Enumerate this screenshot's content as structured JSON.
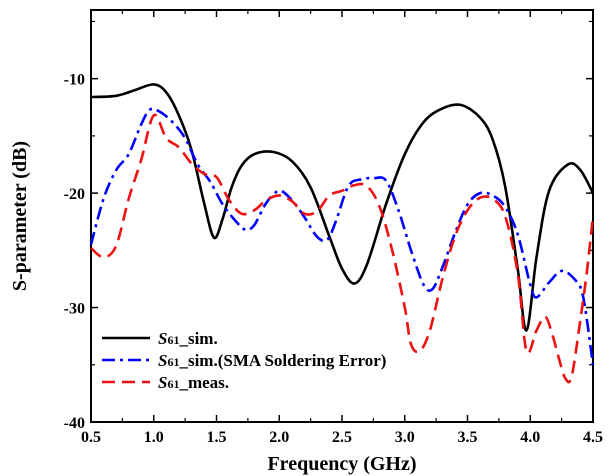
{
  "chart_data": {
    "type": "line",
    "xlabel": "Frequency (GHz)",
    "ylabel": "S-parameter (dB)",
    "xlim": [
      0.5,
      4.5
    ],
    "ylim": [
      -40,
      -4
    ],
    "x_ticks": [
      "0.5",
      "1.0",
      "1.5",
      "2.0",
      "2.5",
      "3.0",
      "3.5",
      "4.0",
      "4.5"
    ],
    "y_ticks": [
      "-40",
      "-30",
      "-20",
      "-10"
    ],
    "grid": false,
    "legend_position": "bottom-left",
    "series": [
      {
        "name_prefix": "S",
        "name_sub": "61",
        "name_suffix": "_sim.",
        "color": "#000000",
        "dash": "solid",
        "x": [
          0.5,
          0.7,
          0.85,
          1.0,
          1.1,
          1.2,
          1.3,
          1.4,
          1.48,
          1.55,
          1.62,
          1.7,
          1.8,
          1.95,
          2.1,
          2.25,
          2.4,
          2.5,
          2.6,
          2.7,
          2.85,
          3.0,
          3.15,
          3.3,
          3.45,
          3.6,
          3.7,
          3.8,
          3.9,
          3.97,
          4.05,
          4.15,
          4.3,
          4.4,
          4.5
        ],
        "y": [
          -11.6,
          -11.5,
          -11.0,
          -10.5,
          -11.2,
          -13.2,
          -16.2,
          -20.8,
          -23.9,
          -22.2,
          -19.5,
          -17.6,
          -16.6,
          -16.4,
          -17.2,
          -19.5,
          -23.8,
          -26.6,
          -27.9,
          -26.2,
          -21.0,
          -16.6,
          -13.8,
          -12.6,
          -12.3,
          -13.4,
          -15.3,
          -19.4,
          -26.6,
          -32.0,
          -25.6,
          -19.8,
          -17.5,
          -18.0,
          -20.0
        ]
      },
      {
        "name_prefix": "S",
        "name_sub": "61",
        "name_suffix": "_sim.(SMA Soldering Error)",
        "color": "#0000ff",
        "dash": "dashdot",
        "x": [
          0.5,
          0.6,
          0.7,
          0.8,
          0.9,
          0.97,
          1.05,
          1.15,
          1.25,
          1.35,
          1.45,
          1.55,
          1.65,
          1.73,
          1.8,
          1.9,
          2.0,
          2.1,
          2.2,
          2.3,
          2.38,
          2.45,
          2.55,
          2.65,
          2.75,
          2.85,
          2.95,
          3.05,
          3.15,
          3.22,
          3.3,
          3.4,
          3.5,
          3.6,
          3.7,
          3.8,
          3.9,
          4.0,
          4.05,
          4.15,
          4.25,
          4.35,
          4.42,
          4.5
        ],
        "y": [
          -24.5,
          -20.5,
          -18.0,
          -16.6,
          -14.0,
          -12.7,
          -12.9,
          -13.8,
          -15.2,
          -17.5,
          -19.0,
          -21.0,
          -22.4,
          -23.2,
          -22.8,
          -20.8,
          -19.8,
          -20.6,
          -22.1,
          -23.8,
          -24.1,
          -22.5,
          -19.4,
          -18.8,
          -18.7,
          -18.9,
          -21.5,
          -25.0,
          -28.0,
          -28.4,
          -26.5,
          -23.5,
          -21.0,
          -20.0,
          -20.2,
          -21.2,
          -23.6,
          -28.0,
          -29.1,
          -27.8,
          -26.8,
          -27.5,
          -29.0,
          -35.0
        ]
      },
      {
        "name_prefix": "S",
        "name_sub": "61",
        "name_suffix": "_meas.",
        "color": "#ee1111",
        "dash": "dash",
        "x": [
          0.5,
          0.6,
          0.7,
          0.8,
          0.9,
          1.0,
          1.1,
          1.2,
          1.3,
          1.4,
          1.5,
          1.6,
          1.7,
          1.8,
          1.9,
          2.0,
          2.1,
          2.2,
          2.3,
          2.4,
          2.5,
          2.6,
          2.7,
          2.8,
          2.9,
          3.0,
          3.05,
          3.12,
          3.2,
          3.3,
          3.4,
          3.5,
          3.6,
          3.7,
          3.8,
          3.9,
          3.97,
          4.05,
          4.12,
          4.18,
          4.23,
          4.28,
          4.33,
          4.4,
          4.45,
          4.5
        ],
        "y": [
          -24.8,
          -25.6,
          -24.6,
          -20.5,
          -17.1,
          -13.2,
          -15.2,
          -16.0,
          -17.4,
          -18.3,
          -18.6,
          -20.6,
          -21.8,
          -21.5,
          -20.6,
          -20.2,
          -20.7,
          -21.8,
          -21.6,
          -20.2,
          -19.8,
          -19.3,
          -19.4,
          -21.2,
          -25.0,
          -30.0,
          -33.2,
          -33.8,
          -32.0,
          -27.5,
          -23.8,
          -21.5,
          -20.4,
          -20.5,
          -22.0,
          -27.0,
          -33.8,
          -32.0,
          -30.8,
          -32.5,
          -34.5,
          -36.2,
          -36.0,
          -31.0,
          -27.0,
          -22.0
        ]
      }
    ]
  }
}
